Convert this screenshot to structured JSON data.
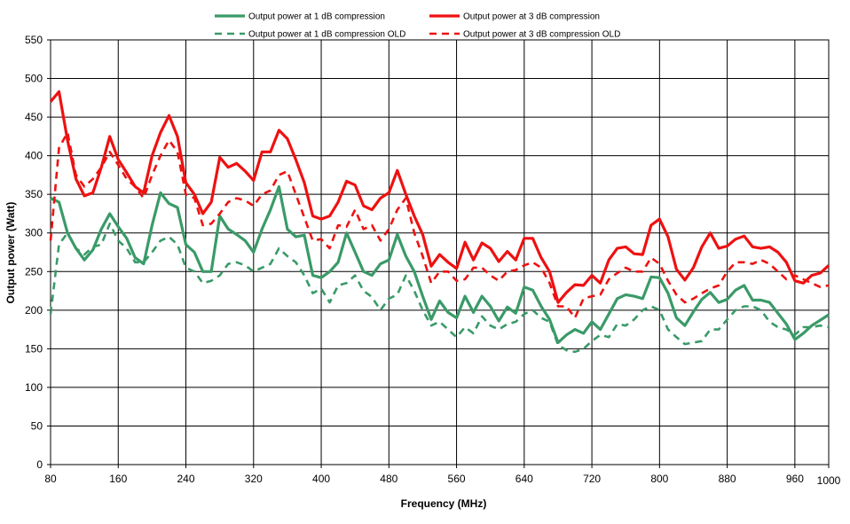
{
  "chart_data": {
    "type": "line",
    "title": "",
    "xlabel": "Frequency (MHz)",
    "ylabel": "Output power (Watt)",
    "xlim": [
      80,
      1000
    ],
    "ylim": [
      0,
      550
    ],
    "grid": true,
    "legend_position": "top-center",
    "x_ticks": [
      "80",
      "160",
      "240",
      "320",
      "400",
      "480",
      "560",
      "640",
      "720",
      "800",
      "880",
      "960",
      "1000"
    ],
    "x_tick_values": [
      80,
      160,
      240,
      320,
      400,
      480,
      560,
      640,
      720,
      800,
      880,
      960,
      1000
    ],
    "y_ticks": [
      "0",
      "50",
      "100",
      "150",
      "200",
      "250",
      "300",
      "350",
      "400",
      "450",
      "500",
      "550"
    ],
    "y_tick_values": [
      0,
      50,
      100,
      150,
      200,
      250,
      300,
      350,
      400,
      450,
      500,
      550
    ],
    "series": [
      {
        "name": "Output power at 1 dB compression",
        "color": "#3a9a68",
        "dash": "solid",
        "x": [
          80,
          90,
          100,
          110,
          120,
          130,
          140,
          150,
          160,
          170,
          180,
          190,
          200,
          210,
          220,
          230,
          240,
          250,
          260,
          270,
          280,
          290,
          300,
          310,
          320,
          330,
          340,
          350,
          360,
          370,
          380,
          390,
          400,
          410,
          420,
          430,
          440,
          450,
          460,
          470,
          480,
          490,
          500,
          510,
          520,
          530,
          540,
          550,
          560,
          570,
          580,
          590,
          600,
          610,
          620,
          630,
          640,
          650,
          660,
          670,
          680,
          690,
          700,
          710,
          720,
          730,
          740,
          750,
          760,
          770,
          780,
          790,
          800,
          810,
          820,
          830,
          840,
          850,
          860,
          870,
          880,
          890,
          900,
          910,
          920,
          930,
          940,
          950,
          960,
          970,
          980,
          990,
          1000
        ],
        "y": [
          345,
          340,
          300,
          280,
          265,
          278,
          305,
          325,
          308,
          293,
          268,
          260,
          310,
          352,
          338,
          333,
          285,
          275,
          250,
          250,
          322,
          305,
          298,
          290,
          275,
          305,
          330,
          360,
          305,
          295,
          297,
          245,
          242,
          250,
          262,
          300,
          275,
          250,
          245,
          260,
          265,
          298,
          270,
          250,
          218,
          188,
          212,
          197,
          190,
          218,
          197,
          218,
          205,
          186,
          204,
          196,
          230,
          226,
          205,
          188,
          158,
          168,
          175,
          170,
          185,
          175,
          195,
          215,
          220,
          218,
          215,
          243,
          242,
          222,
          190,
          180,
          198,
          214,
          223,
          210,
          214,
          226,
          232,
          213,
          213,
          210,
          196,
          182,
          162,
          170,
          180,
          187,
          194
        ]
      },
      {
        "name": "Output power at 3 dB compression",
        "color": "#ee1111",
        "dash": "solid",
        "x": [
          80,
          90,
          100,
          110,
          120,
          130,
          140,
          150,
          160,
          170,
          180,
          190,
          200,
          210,
          220,
          230,
          240,
          250,
          260,
          270,
          280,
          290,
          300,
          310,
          320,
          330,
          340,
          350,
          360,
          370,
          380,
          390,
          400,
          410,
          420,
          430,
          440,
          450,
          460,
          470,
          480,
          490,
          500,
          510,
          520,
          530,
          540,
          550,
          560,
          570,
          580,
          590,
          600,
          610,
          620,
          630,
          640,
          650,
          660,
          670,
          680,
          690,
          700,
          710,
          720,
          730,
          740,
          750,
          760,
          770,
          780,
          790,
          800,
          810,
          820,
          830,
          840,
          850,
          860,
          870,
          880,
          890,
          900,
          910,
          920,
          930,
          940,
          950,
          960,
          970,
          980,
          990,
          1000
        ],
        "y": [
          470,
          483,
          420,
          370,
          348,
          352,
          385,
          425,
          395,
          378,
          360,
          352,
          400,
          430,
          452,
          425,
          365,
          350,
          325,
          340,
          398,
          385,
          390,
          380,
          368,
          405,
          405,
          433,
          422,
          395,
          365,
          322,
          318,
          322,
          340,
          367,
          362,
          335,
          330,
          345,
          352,
          381,
          350,
          322,
          298,
          257,
          272,
          262,
          254,
          288,
          265,
          287,
          280,
          263,
          276,
          265,
          293,
          293,
          268,
          250,
          210,
          223,
          233,
          232,
          245,
          235,
          265,
          280,
          282,
          273,
          272,
          310,
          318,
          295,
          253,
          239,
          255,
          282,
          300,
          280,
          283,
          292,
          296,
          282,
          280,
          282,
          275,
          262,
          238,
          235,
          245,
          248,
          258
        ]
      },
      {
        "name": "Output power at 1 dB compression OLD",
        "color": "#3a9a68",
        "dash": "dashed",
        "x": [
          80,
          90,
          100,
          110,
          120,
          130,
          140,
          150,
          160,
          170,
          180,
          190,
          200,
          210,
          220,
          230,
          240,
          250,
          260,
          270,
          280,
          290,
          300,
          310,
          320,
          330,
          340,
          350,
          360,
          370,
          380,
          390,
          400,
          410,
          420,
          430,
          440,
          450,
          460,
          470,
          480,
          490,
          500,
          510,
          520,
          530,
          540,
          550,
          560,
          570,
          580,
          590,
          600,
          610,
          620,
          630,
          640,
          650,
          660,
          670,
          680,
          690,
          700,
          710,
          720,
          730,
          740,
          750,
          760,
          770,
          780,
          790,
          800,
          810,
          820,
          830,
          840,
          850,
          860,
          870,
          880,
          890,
          900,
          910,
          920,
          930,
          940,
          950,
          960,
          970,
          980,
          990,
          1000
        ],
        "y": [
          195,
          285,
          300,
          280,
          272,
          282,
          285,
          312,
          290,
          280,
          262,
          262,
          275,
          290,
          295,
          285,
          255,
          250,
          235,
          238,
          245,
          260,
          262,
          258,
          250,
          255,
          260,
          280,
          270,
          262,
          245,
          222,
          228,
          210,
          232,
          235,
          245,
          225,
          217,
          200,
          215,
          220,
          245,
          225,
          200,
          180,
          185,
          175,
          165,
          178,
          170,
          192,
          180,
          175,
          182,
          185,
          195,
          200,
          190,
          185,
          155,
          148,
          146,
          150,
          160,
          168,
          165,
          182,
          180,
          188,
          200,
          205,
          200,
          175,
          165,
          156,
          158,
          160,
          175,
          175,
          188,
          200,
          205,
          205,
          200,
          185,
          178,
          175,
          168,
          178,
          178,
          180,
          178
        ]
      },
      {
        "name": "Output power at 3 dB compression OLD",
        "color": "#ee1111",
        "dash": "dashed",
        "x": [
          80,
          90,
          100,
          110,
          120,
          130,
          140,
          150,
          160,
          170,
          180,
          190,
          200,
          210,
          220,
          230,
          240,
          250,
          260,
          270,
          280,
          290,
          300,
          310,
          320,
          330,
          340,
          350,
          360,
          370,
          380,
          390,
          400,
          410,
          420,
          430,
          440,
          450,
          460,
          470,
          480,
          490,
          500,
          510,
          520,
          530,
          540,
          550,
          560,
          570,
          580,
          590,
          600,
          610,
          620,
          630,
          640,
          650,
          660,
          670,
          680,
          690,
          700,
          710,
          720,
          730,
          740,
          750,
          760,
          770,
          780,
          790,
          800,
          810,
          820,
          830,
          840,
          850,
          860,
          870,
          880,
          890,
          900,
          910,
          920,
          930,
          940,
          950,
          960,
          970,
          980,
          990,
          1000
        ],
        "y": [
          290,
          410,
          430,
          375,
          360,
          370,
          385,
          405,
          388,
          370,
          360,
          345,
          375,
          400,
          420,
          405,
          350,
          345,
          310,
          312,
          325,
          340,
          345,
          342,
          335,
          350,
          355,
          375,
          380,
          350,
          320,
          290,
          292,
          280,
          310,
          308,
          330,
          305,
          310,
          290,
          305,
          330,
          345,
          300,
          270,
          235,
          250,
          250,
          238,
          240,
          255,
          255,
          245,
          238,
          250,
          252,
          258,
          262,
          255,
          235,
          205,
          205,
          190,
          215,
          218,
          220,
          240,
          248,
          255,
          250,
          250,
          268,
          260,
          238,
          220,
          210,
          215,
          222,
          228,
          232,
          250,
          262,
          262,
          260,
          265,
          260,
          250,
          240,
          245,
          240,
          235,
          230,
          232
        ]
      }
    ]
  }
}
